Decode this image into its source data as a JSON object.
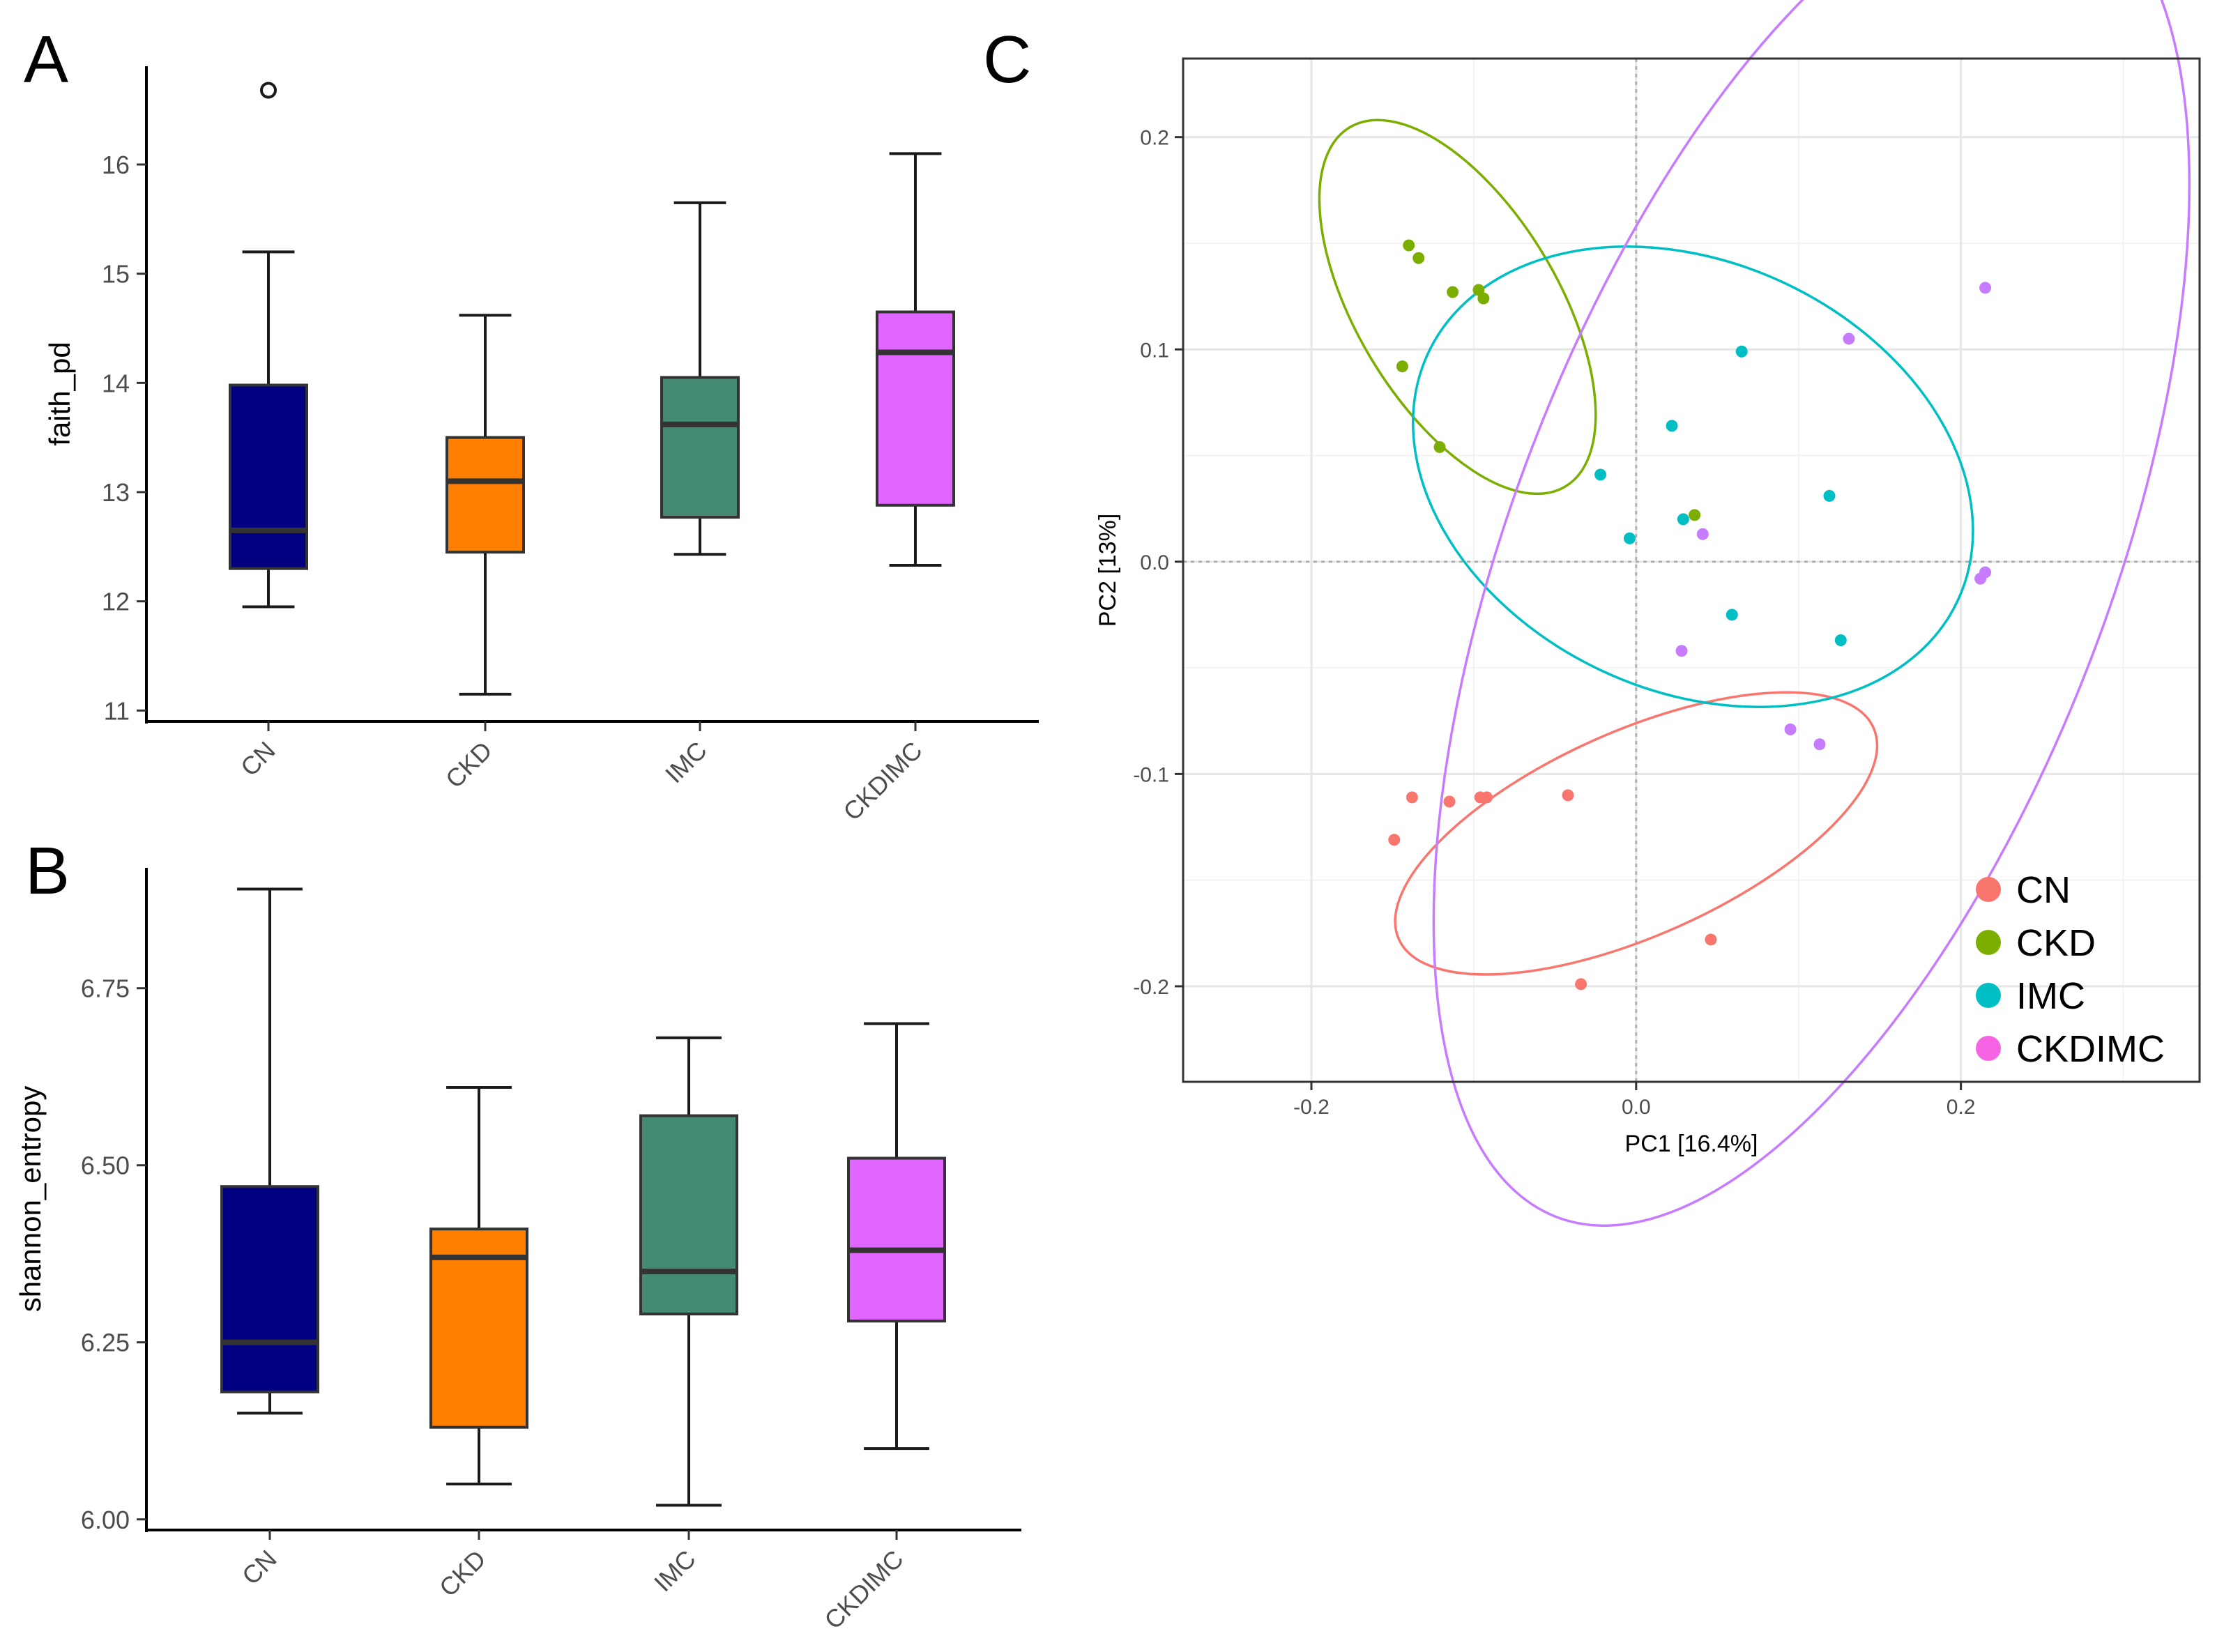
{
  "colors": {
    "CN_box": "#000080",
    "CKD_box": "#FF7F00",
    "IMC_box": "#458B74",
    "CKDIMC_box": "#E066FF",
    "CN_pt": "#F8766D",
    "CKD_pt": "#7CAE00",
    "IMC_pt": "#00BFC4",
    "CKDIMC_pt": "#C77CFF",
    "CKDIMC_legend": "#F564E3"
  },
  "panels": {
    "A": {
      "letter": "A"
    },
    "B": {
      "letter": "B"
    },
    "C": {
      "letter": "C"
    }
  },
  "chart_data": [
    {
      "id": "A",
      "type": "box",
      "ylabel": "faith_pd",
      "xlabel": "",
      "ylim": [
        10.9,
        16.9
      ],
      "ytick_values": [
        11,
        12,
        13,
        14,
        15,
        16
      ],
      "yticks": [
        "11",
        "12",
        "13",
        "14",
        "15",
        "16"
      ],
      "categories": [
        "CN",
        "CKD",
        "IMC",
        "CKDIMC"
      ],
      "boxes": [
        {
          "name": "CN",
          "min": 11.95,
          "q1": 12.3,
          "median": 12.65,
          "q3": 13.98,
          "max": 15.2,
          "outliers": [
            16.68
          ]
        },
        {
          "name": "CKD",
          "min": 11.15,
          "q1": 12.45,
          "median": 13.1,
          "q3": 13.5,
          "max": 14.62,
          "outliers": []
        },
        {
          "name": "IMC",
          "min": 12.43,
          "q1": 12.77,
          "median": 13.62,
          "q3": 14.05,
          "max": 15.65,
          "outliers": []
        },
        {
          "name": "CKDIMC",
          "min": 12.33,
          "q1": 12.88,
          "median": 14.28,
          "q3": 14.65,
          "max": 16.1,
          "outliers": []
        }
      ]
    },
    {
      "id": "B",
      "type": "box",
      "ylabel": "shannon_entropy",
      "xlabel": "",
      "ylim": [
        5.985,
        6.92
      ],
      "ytick_values": [
        6.0,
        6.25,
        6.5,
        6.75
      ],
      "yticks": [
        "6.00",
        "6.25",
        "6.50",
        "6.75"
      ],
      "categories": [
        "CN",
        "CKD",
        "IMC",
        "CKDIMC"
      ],
      "boxes": [
        {
          "name": "CN",
          "min": 6.15,
          "q1": 6.18,
          "median": 6.25,
          "q3": 6.47,
          "max": 6.89,
          "outliers": []
        },
        {
          "name": "CKD",
          "min": 6.05,
          "q1": 6.13,
          "median": 6.37,
          "q3": 6.41,
          "max": 6.61,
          "outliers": []
        },
        {
          "name": "IMC",
          "min": 6.02,
          "q1": 6.29,
          "median": 6.35,
          "q3": 6.57,
          "max": 6.68,
          "outliers": []
        },
        {
          "name": "CKDIMC",
          "min": 6.1,
          "q1": 6.28,
          "median": 6.38,
          "q3": 6.51,
          "max": 6.7,
          "outliers": []
        }
      ]
    },
    {
      "id": "C",
      "type": "scatter",
      "xlabel": "PC1   [16.4%]",
      "ylabel": "PC2   [13%]",
      "xlim": [
        -0.279,
        0.347
      ],
      "ylim": [
        -0.245,
        0.237
      ],
      "xtick_values": [
        -0.2,
        0.0,
        0.2
      ],
      "xticks": [
        "-0.2",
        "0.0",
        "0.2"
      ],
      "ytick_values": [
        -0.2,
        -0.1,
        0.0,
        0.1,
        0.2
      ],
      "yticks": [
        "-0.2",
        "-0.1",
        "0.0",
        "0.1",
        "0.2"
      ],
      "grid": true,
      "legend_position": "bottom-right",
      "series": [
        {
          "name": "CN",
          "points": [
            [
              -0.149,
              -0.131
            ],
            [
              -0.138,
              -0.111
            ],
            [
              -0.115,
              -0.113
            ],
            [
              -0.096,
              -0.111
            ],
            [
              -0.092,
              -0.111
            ],
            [
              -0.042,
              -0.11
            ],
            [
              0.046,
              -0.178
            ],
            [
              -0.034,
              -0.199
            ]
          ],
          "ellipse": {
            "cx": 0.0,
            "cy": -0.128,
            "rx": 0.16,
            "ry": 0.063,
            "angle_deg": -24
          }
        },
        {
          "name": "CKD",
          "points": [
            [
              -0.14,
              0.149
            ],
            [
              -0.134,
              0.143
            ],
            [
              -0.113,
              0.127
            ],
            [
              -0.097,
              0.128
            ],
            [
              -0.094,
              0.124
            ],
            [
              -0.144,
              0.092
            ],
            [
              -0.121,
              0.054
            ],
            [
              0.036,
              0.022
            ]
          ],
          "ellipse": {
            "cx": -0.11,
            "cy": 0.12,
            "rx": 0.129,
            "ry": 0.062,
            "angle_deg": 59
          }
        },
        {
          "name": "IMC",
          "points": [
            [
              0.065,
              0.099
            ],
            [
              0.022,
              0.064
            ],
            [
              -0.022,
              0.041
            ],
            [
              0.119,
              0.031
            ],
            [
              0.029,
              0.02
            ],
            [
              -0.004,
              0.011
            ],
            [
              0.059,
              -0.025
            ],
            [
              0.126,
              -0.037
            ]
          ],
          "ellipse": {
            "cx": 0.035,
            "cy": 0.04,
            "rx": 0.18,
            "ry": 0.132,
            "angle_deg": 25
          }
        },
        {
          "name": "CKDIMC",
          "points": [
            [
              0.215,
              0.129
            ],
            [
              0.131,
              0.105
            ],
            [
              0.041,
              0.013
            ],
            [
              0.215,
              -0.005
            ],
            [
              0.212,
              -0.008
            ],
            [
              0.028,
              -0.042
            ],
            [
              0.095,
              -0.079
            ],
            [
              0.113,
              -0.086
            ]
          ],
          "ellipse": {
            "cx": 0.108,
            "cy": 0.004,
            "rx": 0.438,
            "ry": 0.184,
            "angle_deg": 111
          }
        }
      ],
      "legend": [
        "CN",
        "CKD",
        "IMC",
        "CKDIMC"
      ]
    }
  ]
}
